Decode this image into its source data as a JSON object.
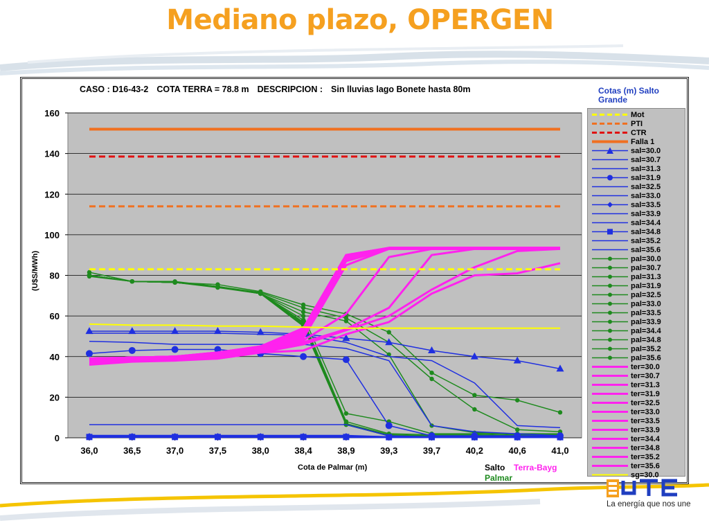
{
  "slide": {
    "title": "Mediano plazo, OPERGEN",
    "slogan": "La energía que nos une"
  },
  "header": {
    "caso": "CASO : D16-43-2",
    "cota_terra": "COTA TERRA = 78.8 m",
    "descripcion_label": "DESCRIPCION :",
    "descripcion": "Sin lluvias lago Bonete hasta 80m"
  },
  "legend_title": "Cotas (m) Salto Grande",
  "tags": {
    "salto": "Salto",
    "terra": "Terra-Bayg",
    "palmar": "Palmar"
  },
  "colors": {
    "salto": "#1f2fe0",
    "terra": "#ff22ee",
    "palmar": "#1e8a1e",
    "plot_bg": "#c0c0c0",
    "title": "#f5a020"
  },
  "chart_data": {
    "type": "line",
    "xlabel": "Cota de Palmar (m)",
    "ylabel": "(U$S/MWh)",
    "categories": [
      "36,0",
      "36,5",
      "37,0",
      "37,5",
      "38,0",
      "38,4",
      "38,9",
      "39,3",
      "39,7",
      "40,2",
      "40,6",
      "41,0"
    ],
    "ylim": [
      0,
      160
    ],
    "yticks": [
      0,
      20,
      40,
      60,
      80,
      100,
      120,
      140,
      160
    ],
    "grid": true,
    "legend_position": "right",
    "series": [
      {
        "name": "Mot",
        "color": "#ffff00",
        "dash": true,
        "width": 3,
        "values": [
          83,
          83,
          83,
          83,
          83,
          83,
          83,
          83,
          83,
          83,
          83,
          83
        ]
      },
      {
        "name": "PTI",
        "color": "#f07020",
        "dash": true,
        "width": 3,
        "values": [
          114,
          114,
          114,
          114,
          114,
          114,
          114,
          114,
          114,
          114,
          114,
          114
        ]
      },
      {
        "name": "CTR",
        "color": "#e01010",
        "dash": true,
        "width": 3,
        "values": [
          138.5,
          138.5,
          138.5,
          138.5,
          138.5,
          138.5,
          138.5,
          138.5,
          138.5,
          138.5,
          138.5,
          138.5
        ]
      },
      {
        "name": "Falla 1",
        "color": "#f07020",
        "width": 4,
        "values": [
          152,
          152,
          152,
          152,
          152,
          152,
          152,
          152,
          152,
          152,
          152,
          152
        ]
      },
      {
        "name": "sal=30.0",
        "color": "#1f2fe0",
        "marker": "triangle",
        "values": [
          52.5,
          52.5,
          52.5,
          52.5,
          52,
          51,
          49,
          47,
          43,
          40,
          38,
          34
        ]
      },
      {
        "name": "sal=30.7",
        "color": "#1f2fe0",
        "values": [
          51.5,
          51.5,
          51.5,
          51.5,
          51,
          50.5,
          47,
          40,
          38,
          27,
          6,
          5
        ]
      },
      {
        "name": "sal=31.3",
        "color": "#1f2fe0",
        "values": [
          47.5,
          47,
          46,
          46,
          46,
          46,
          44,
          38,
          6,
          3,
          2,
          1
        ]
      },
      {
        "name": "sal=31.9",
        "color": "#1f2fe0",
        "marker": "circle",
        "values": [
          41.5,
          43,
          43.5,
          43.5,
          41.5,
          40,
          38.5,
          6,
          1,
          1,
          1,
          1
        ]
      },
      {
        "name": "sal=32.5",
        "color": "#1f2fe0",
        "values": [
          6.5,
          6.5,
          6.5,
          6.5,
          6.5,
          6.5,
          6.5,
          1,
          0.5,
          0.5,
          0.5,
          0.5
        ]
      },
      {
        "name": "sal=33.0",
        "color": "#1f2fe0",
        "values": [
          1.2,
          1.2,
          1.2,
          1.2,
          1.2,
          1.2,
          1.2,
          0.5,
          0.5,
          0.5,
          0.5,
          0.5
        ]
      },
      {
        "name": "sal=33.5",
        "color": "#1f2fe0",
        "marker": "diamond",
        "values": [
          1,
          1,
          1,
          1,
          1,
          1,
          1,
          0.5,
          0.5,
          0.5,
          0.5,
          0.5
        ]
      },
      {
        "name": "sal=33.9",
        "color": "#1f2fe0",
        "values": [
          0.8,
          0.8,
          0.8,
          0.8,
          0.8,
          0.8,
          0.8,
          0.5,
          0.5,
          0.5,
          0.5,
          0.5
        ]
      },
      {
        "name": "sal=34.4",
        "color": "#1f2fe0",
        "values": [
          0.6,
          0.6,
          0.6,
          0.6,
          0.6,
          0.6,
          0.6,
          0.4,
          0.4,
          0.4,
          0.4,
          0.4
        ]
      },
      {
        "name": "sal=34.8",
        "color": "#1f2fe0",
        "marker": "square",
        "values": [
          0.4,
          0.4,
          0.4,
          0.4,
          0.4,
          0.4,
          0.4,
          0.3,
          0.3,
          0.3,
          0.3,
          0.3
        ]
      },
      {
        "name": "sal=35.2",
        "color": "#1f2fe0",
        "values": [
          0.3,
          0.3,
          0.3,
          0.3,
          0.3,
          0.3,
          0.3,
          0.2,
          0.2,
          0.2,
          0.2,
          0.2
        ]
      },
      {
        "name": "sal=35.6",
        "color": "#1f2fe0",
        "values": [
          0.2,
          0.2,
          0.2,
          0.2,
          0.2,
          0.2,
          0.2,
          0.1,
          0.1,
          0.1,
          0.1,
          0.1
        ]
      },
      {
        "name": "pal=30.0",
        "color": "#1e8a1e",
        "marker": "dot",
        "values": [
          81.5,
          77,
          76.5,
          75.5,
          72,
          65.5,
          61,
          52,
          32,
          21,
          18.5,
          12.5
        ]
      },
      {
        "name": "pal=30.7",
        "color": "#1e8a1e",
        "marker": "dot",
        "values": [
          79.5,
          77,
          77,
          74.5,
          71.5,
          64,
          59,
          47,
          29,
          14,
          4,
          3
        ]
      },
      {
        "name": "pal=31.3",
        "color": "#1e8a1e",
        "marker": "dot",
        "values": [
          80,
          77,
          76.5,
          74,
          71,
          62,
          57.5,
          41,
          6,
          2.5,
          2,
          2
        ]
      },
      {
        "name": "pal=31.9",
        "color": "#1e8a1e",
        "marker": "dot",
        "values": [
          80,
          77,
          76.5,
          74.5,
          71,
          60,
          12,
          8,
          2,
          2,
          1.5,
          1.5
        ]
      },
      {
        "name": "pal=32.5",
        "color": "#1e8a1e",
        "marker": "dot",
        "values": [
          80,
          77,
          76.5,
          74.5,
          71,
          58,
          8,
          2,
          1.5,
          1.5,
          1,
          1
        ]
      },
      {
        "name": "pal=33.0",
        "color": "#1e8a1e",
        "marker": "dot",
        "values": [
          80,
          77,
          76.5,
          74.5,
          71,
          57,
          7,
          1.5,
          1,
          1,
          1,
          1
        ]
      },
      {
        "name": "pal=33.5",
        "color": "#1e8a1e",
        "marker": "dot",
        "values": [
          80,
          77,
          76.5,
          74.5,
          71,
          56.5,
          6.5,
          1.2,
          1,
          1,
          1,
          1
        ]
      },
      {
        "name": "pal=33.9",
        "color": "#1e8a1e",
        "marker": "dot",
        "values": [
          80,
          77,
          76.5,
          74.5,
          71,
          56,
          6.5,
          1,
          1,
          1,
          1,
          1
        ]
      },
      {
        "name": "pal=34.4",
        "color": "#1e8a1e",
        "marker": "dot",
        "values": [
          80,
          77,
          76.5,
          74.5,
          71,
          55.5,
          6.5,
          1,
          1,
          1,
          1,
          1
        ]
      },
      {
        "name": "pal=34.8",
        "color": "#1e8a1e",
        "marker": "dot",
        "values": [
          80,
          77,
          76.5,
          74.5,
          71,
          55,
          6.5,
          1,
          0.8,
          0.8,
          0.8,
          0.8
        ]
      },
      {
        "name": "pal=35.2",
        "color": "#1e8a1e",
        "marker": "dot",
        "values": [
          80,
          77,
          76.5,
          74.5,
          71,
          55,
          6.5,
          1,
          0.8,
          0.8,
          0.8,
          0.8
        ]
      },
      {
        "name": "pal=35.6",
        "color": "#1e8a1e",
        "marker": "dot",
        "values": [
          80,
          77,
          76.5,
          74.5,
          71,
          55,
          6.5,
          1,
          0.8,
          0.8,
          0.8,
          0.8
        ]
      },
      {
        "name": "ter=30.0",
        "color": "#ff22ee",
        "width": 3,
        "values": [
          36,
          37.5,
          38,
          39,
          42,
          43,
          51,
          57,
          71,
          80,
          81,
          86
        ]
      },
      {
        "name": "ter=30.7",
        "color": "#ff22ee",
        "width": 3,
        "values": [
          37,
          38,
          38.5,
          39,
          42,
          46,
          53,
          60,
          73,
          84,
          92,
          93
        ]
      },
      {
        "name": "ter=31.3",
        "color": "#ff22ee",
        "width": 3,
        "values": [
          38,
          38.5,
          39,
          39.5,
          42,
          47,
          53.5,
          64,
          90,
          93,
          93,
          93
        ]
      },
      {
        "name": "ter=31.9",
        "color": "#ff22ee",
        "width": 3,
        "values": [
          38.5,
          39,
          39,
          40,
          42.5,
          48,
          61,
          89,
          93,
          93,
          93,
          93
        ]
      },
      {
        "name": "ter=32.5",
        "color": "#ff22ee",
        "width": 3,
        "values": [
          39,
          39,
          39.5,
          40.5,
          43,
          49,
          85,
          93,
          93,
          93,
          93,
          93
        ]
      },
      {
        "name": "ter=33.0",
        "color": "#ff22ee",
        "width": 3,
        "values": [
          39,
          39,
          39.5,
          41,
          43.5,
          50,
          87,
          93,
          93,
          93,
          93,
          93
        ]
      },
      {
        "name": "ter=33.5",
        "color": "#ff22ee",
        "width": 3,
        "values": [
          39,
          39.5,
          40,
          41,
          44,
          51,
          88,
          93.5,
          93.5,
          93.5,
          93.5,
          93.5
        ]
      },
      {
        "name": "ter=33.9",
        "color": "#ff22ee",
        "width": 3,
        "values": [
          39,
          39.5,
          40,
          41.5,
          44,
          52,
          89,
          93.5,
          93.5,
          93.5,
          93.5,
          93.5
        ]
      },
      {
        "name": "ter=34.4",
        "color": "#ff22ee",
        "width": 3,
        "values": [
          39,
          39.5,
          40,
          41.5,
          44.5,
          53,
          89.5,
          93.5,
          93.5,
          93.5,
          93.5,
          93.5
        ]
      },
      {
        "name": "ter=34.8",
        "color": "#ff22ee",
        "width": 3,
        "values": [
          39,
          39.5,
          40,
          42,
          45,
          53.5,
          90,
          93.5,
          93.5,
          93.5,
          93.5,
          93.5
        ]
      },
      {
        "name": "ter=35.2",
        "color": "#ff22ee",
        "width": 3,
        "values": [
          39,
          39.5,
          40,
          42,
          45,
          54,
          90,
          93.5,
          93.5,
          93.5,
          93.5,
          93.5
        ]
      },
      {
        "name": "ter=35.6",
        "color": "#ff22ee",
        "width": 3,
        "values": [
          39,
          39.5,
          40,
          42,
          45,
          54,
          90,
          93.5,
          93.5,
          93.5,
          93.5,
          93.5
        ]
      },
      {
        "name": "sg=30.0",
        "color": "#ffff00",
        "width": 2,
        "values": [
          56,
          55.5,
          55.5,
          55,
          55,
          54.5,
          54,
          54,
          54,
          54,
          54,
          54
        ]
      }
    ]
  }
}
